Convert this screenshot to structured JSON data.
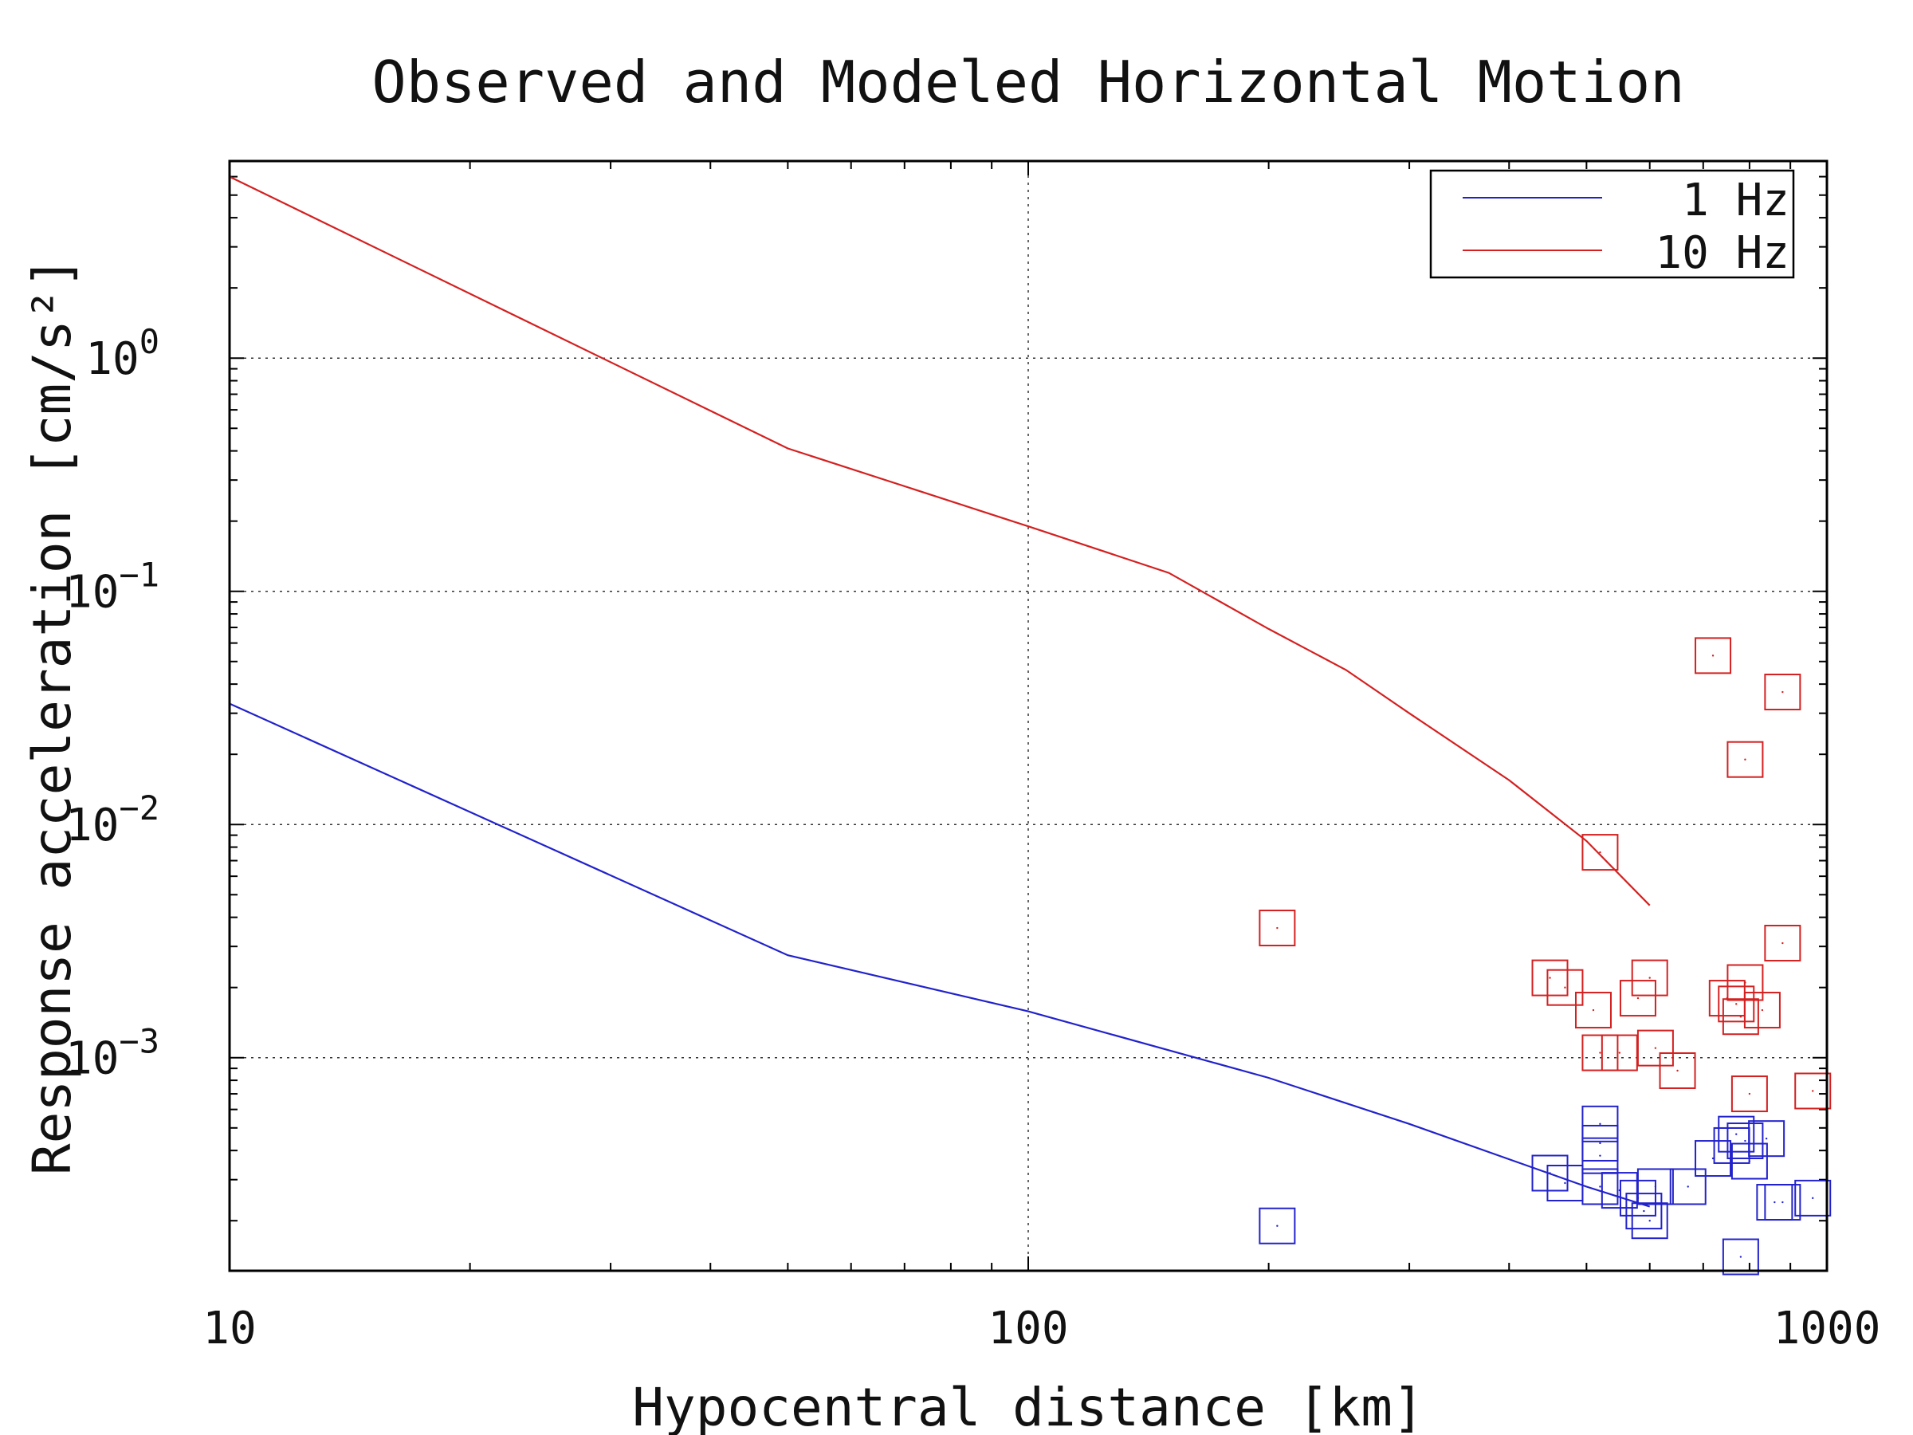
{
  "chart_data": {
    "type": "scatter",
    "title": "Observed and Modeled Horizontal Motion",
    "xlabel": "Hypocentral distance [km]",
    "ylabel": "Response acceleration [cm/s²]",
    "x_scale": "log",
    "y_scale": "log",
    "xlim": [
      10,
      1000
    ],
    "ylim": [
      0.000122,
      7.0
    ],
    "x_ticks": [
      {
        "value": 10,
        "label": "10"
      },
      {
        "value": 100,
        "label": "100"
      },
      {
        "value": 1000,
        "label": "1000"
      }
    ],
    "y_ticks": [
      {
        "value": 1,
        "base": "10",
        "exp": "0"
      },
      {
        "value": 0.1,
        "base": "10",
        "exp": "−1"
      },
      {
        "value": 0.01,
        "base": "10",
        "exp": "−2"
      },
      {
        "value": 0.001,
        "base": "10",
        "exp": "−3"
      }
    ],
    "grid": true,
    "legend": {
      "position": "top-right"
    },
    "series": [
      {
        "name": "1 Hz",
        "color": "#2222cc",
        "model_line": [
          [
            10,
            0.033
          ],
          [
            50,
            0.00275
          ],
          [
            100,
            0.00158
          ],
          [
            200,
            0.00082
          ],
          [
            300,
            0.00052
          ],
          [
            500,
            0.00028
          ],
          [
            600,
            0.00023
          ]
        ],
        "observed": [
          [
            205,
            0.00019
          ],
          [
            520,
            0.00052
          ],
          [
            520,
            0.00043
          ],
          [
            520,
            0.00038
          ],
          [
            450,
            0.00032
          ],
          [
            470,
            0.00029
          ],
          [
            520,
            0.00028
          ],
          [
            550,
            0.00027
          ],
          [
            580,
            0.00025
          ],
          [
            590,
            0.00022
          ],
          [
            600,
            0.0002
          ],
          [
            610,
            0.00028
          ],
          [
            670,
            0.00028
          ],
          [
            720,
            0.00037
          ],
          [
            760,
            0.00042
          ],
          [
            770,
            0.00047
          ],
          [
            790,
            0.00044
          ],
          [
            800,
            0.00036
          ],
          [
            840,
            0.00045
          ],
          [
            860,
            0.00024
          ],
          [
            880,
            0.00024
          ],
          [
            960,
            0.00025
          ],
          [
            780,
            0.00014
          ]
        ]
      },
      {
        "name": "10 Hz",
        "color": "#d42020",
        "model_line": [
          [
            10,
            6.0
          ],
          [
            50,
            0.41
          ],
          [
            100,
            0.19
          ],
          [
            150,
            0.12
          ],
          [
            200,
            0.069
          ],
          [
            250,
            0.046
          ],
          [
            300,
            0.03
          ],
          [
            400,
            0.0155
          ],
          [
            500,
            0.0085
          ],
          [
            600,
            0.0045
          ]
        ],
        "observed": [
          [
            205,
            0.0036
          ],
          [
            520,
            0.0076
          ],
          [
            720,
            0.053
          ],
          [
            790,
            0.019
          ],
          [
            880,
            0.037
          ],
          [
            450,
            0.0022
          ],
          [
            470,
            0.002
          ],
          [
            510,
            0.0016
          ],
          [
            580,
            0.0018
          ],
          [
            600,
            0.0022
          ],
          [
            520,
            0.00105
          ],
          [
            550,
            0.00105
          ],
          [
            610,
            0.0011
          ],
          [
            650,
            0.00088
          ],
          [
            750,
            0.0018
          ],
          [
            770,
            0.0017
          ],
          [
            780,
            0.0015
          ],
          [
            790,
            0.0021
          ],
          [
            830,
            0.0016
          ],
          [
            880,
            0.0031
          ],
          [
            800,
            0.0007
          ],
          [
            960,
            0.00072
          ]
        ]
      }
    ]
  }
}
